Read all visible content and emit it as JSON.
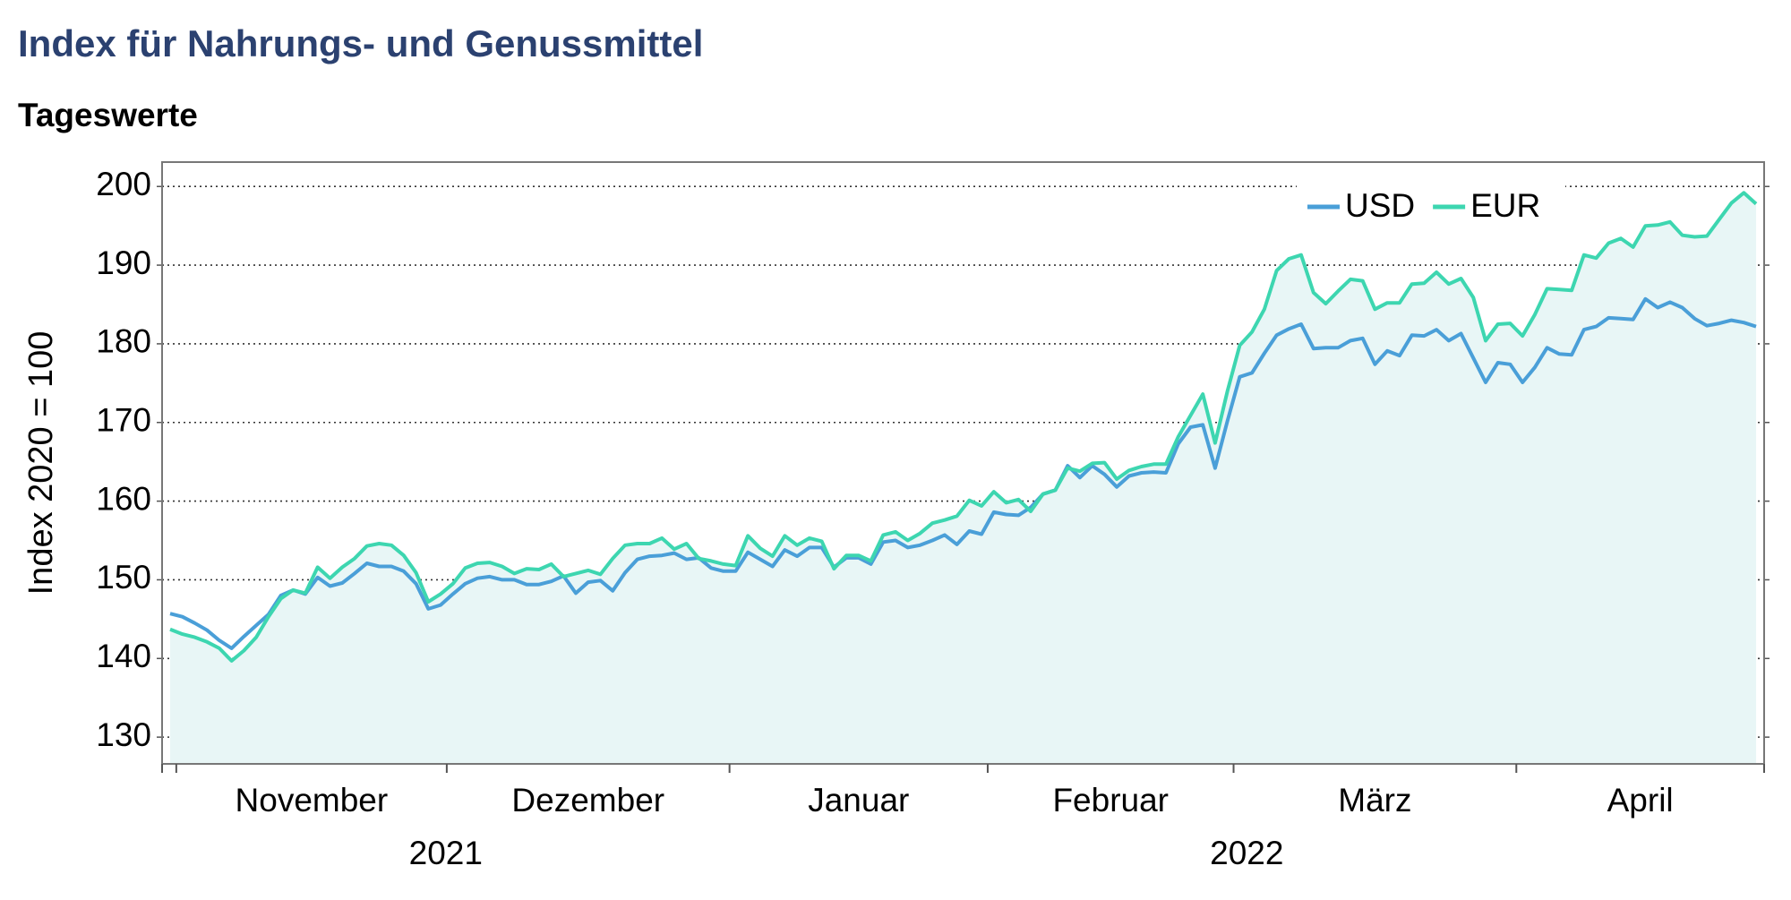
{
  "chart_data": {
    "type": "line",
    "title": "Index für Nahrungs- und Genussmittel",
    "subtitle": "Tageswerte",
    "y_label": "Index 2020 = 100",
    "x": [
      "2021-10",
      "2021-11",
      "2021-11",
      "2021-11",
      "2021-11",
      "2021-11",
      "2021-11",
      "2021-11",
      "2021-11",
      "2021-11",
      "2021-11",
      "2021-11",
      "2021-11",
      "2021-11",
      "2021-11",
      "2021-11",
      "2021-11",
      "2021-11",
      "2021-11",
      "2021-11",
      "2021-11",
      "2021-11",
      "2021-11",
      "2021-12",
      "2021-12",
      "2021-12",
      "2021-12",
      "2021-12",
      "2021-12",
      "2021-12",
      "2021-12",
      "2021-12",
      "2021-12",
      "2021-12",
      "2021-12",
      "2021-12",
      "2021-12",
      "2021-12",
      "2021-12",
      "2021-12",
      "2021-12",
      "2021-12",
      "2021-12",
      "2021-12",
      "2021-12",
      "2021-12",
      "2022-01",
      "2022-01",
      "2022-01",
      "2022-01",
      "2022-01",
      "2022-01",
      "2022-01",
      "2022-01",
      "2022-01",
      "2022-01",
      "2022-01",
      "2022-01",
      "2022-01",
      "2022-01",
      "2022-01",
      "2022-01",
      "2022-01",
      "2022-01",
      "2022-01",
      "2022-01",
      "2022-01",
      "2022-02",
      "2022-02",
      "2022-02",
      "2022-02",
      "2022-02",
      "2022-02",
      "2022-02",
      "2022-02",
      "2022-02",
      "2022-02",
      "2022-02",
      "2022-02",
      "2022-02",
      "2022-02",
      "2022-02",
      "2022-02",
      "2022-02",
      "2022-02",
      "2022-02",
      "2022-02",
      "2022-03",
      "2022-03",
      "2022-03",
      "2022-03",
      "2022-03",
      "2022-03",
      "2022-03",
      "2022-03",
      "2022-03",
      "2022-03",
      "2022-03",
      "2022-03",
      "2022-03",
      "2022-03",
      "2022-03",
      "2022-03",
      "2022-03",
      "2022-03",
      "2022-03",
      "2022-03",
      "2022-03",
      "2022-03",
      "2022-03",
      "2022-04",
      "2022-04",
      "2022-04",
      "2022-04",
      "2022-04",
      "2022-04",
      "2022-04",
      "2022-04",
      "2022-04",
      "2022-04",
      "2022-04",
      "2022-04",
      "2022-04",
      "2022-04",
      "2022-04",
      "2022-04",
      "2022-04",
      "2022-04",
      "2022-04",
      "2022-04"
    ],
    "xticks": [
      {
        "value": "2021-11",
        "label": "November"
      },
      {
        "value": "2021-12",
        "label": "Dezember"
      },
      {
        "value": "2022-01",
        "label": "Januar"
      },
      {
        "value": "2022-02",
        "label": "Februar"
      },
      {
        "value": "2022-03",
        "label": "März"
      },
      {
        "value": "2022-04",
        "label": "April"
      }
    ],
    "xgroups": [
      "2021",
      "2022"
    ],
    "series": [
      {
        "name": "USD",
        "color": "#4a9fd8",
        "values": [
          145.7,
          145.3,
          144.5,
          143.6,
          142.3,
          141.3,
          142.8,
          144.2,
          145.6,
          148,
          148.7,
          148.2,
          150.3,
          149.2,
          149.6,
          150.8,
          152.1,
          151.7,
          151.7,
          151.1,
          149.5,
          146.3,
          146.8,
          148.2,
          149.5,
          150.2,
          150.4,
          150,
          150,
          149.4,
          149.4,
          149.8,
          150.5,
          148.3,
          149.7,
          149.9,
          148.6,
          150.9,
          152.6,
          153,
          153.1,
          153.4,
          152.6,
          152.8,
          151.5,
          151.1,
          151.1,
          153.5,
          152.6,
          151.7,
          153.8,
          153,
          154.1,
          154.1,
          151.6,
          152.8,
          152.8,
          152,
          154.8,
          155,
          154.1,
          154.4,
          155,
          155.7,
          154.5,
          156.2,
          155.8,
          158.6,
          158.3,
          158.2,
          159.2,
          160.9,
          161.4,
          164.5,
          163,
          164.5,
          163.4,
          161.8,
          163.2,
          163.6,
          163.7,
          163.6,
          167.3,
          169.4,
          169.7,
          164.2,
          170.2,
          175.8,
          176.3,
          178.8,
          181.1,
          181.9,
          182.5,
          179.4,
          179.5,
          179.5,
          180.4,
          180.7,
          177.4,
          179.1,
          178.5,
          181.1,
          181,
          181.8,
          180.4,
          181.3,
          178.2,
          175.1,
          177.6,
          177.4,
          175.1,
          177,
          179.5,
          178.7,
          178.6,
          181.8,
          182.2,
          183.3,
          183.2,
          183.1,
          185.7,
          184.6,
          185.3,
          184.6,
          183.2,
          182.3,
          182.6,
          183,
          182.7,
          182.2
        ]
      },
      {
        "name": "EUR",
        "color": "#3dd6b0",
        "values": [
          143.7,
          143.1,
          142.7,
          142.1,
          141.3,
          139.7,
          141,
          142.7,
          145.3,
          147.6,
          148.7,
          148.3,
          151.6,
          150.2,
          151.6,
          152.7,
          154.3,
          154.6,
          154.4,
          153.1,
          150.9,
          147.2,
          148.2,
          149.5,
          151.5,
          152.1,
          152.2,
          151.7,
          150.8,
          151.4,
          151.3,
          152,
          150.4,
          150.8,
          151.2,
          150.7,
          152.7,
          154.4,
          154.6,
          154.6,
          155.3,
          153.9,
          154.6,
          152.7,
          152.4,
          152,
          151.8,
          155.6,
          154,
          153,
          155.6,
          154.4,
          155.3,
          154.9,
          151.4,
          153.1,
          153.1,
          152.4,
          155.7,
          156.1,
          155,
          155.9,
          157.2,
          157.6,
          158.1,
          160.1,
          159.4,
          161.2,
          159.8,
          160.2,
          158.7,
          160.9,
          161.4,
          164.2,
          163.8,
          164.8,
          164.9,
          162.8,
          163.9,
          164.4,
          164.7,
          164.7,
          168.2,
          170.9,
          173.6,
          167.4,
          174,
          179.8,
          181.5,
          184.4,
          189.3,
          190.8,
          191.3,
          186.5,
          185.1,
          186.7,
          188.2,
          188,
          184.4,
          185.2,
          185.2,
          187.6,
          187.7,
          189.1,
          187.6,
          188.3,
          185.9,
          180.4,
          182.5,
          182.6,
          181,
          183.7,
          187,
          186.9,
          186.8,
          191.3,
          190.9,
          192.8,
          193.4,
          192.3,
          195,
          195.1,
          195.5,
          193.8,
          193.6,
          193.7,
          195.8,
          197.9,
          199.2,
          197.8
        ]
      }
    ],
    "area_color": "#e8f6f6",
    "ylim": [
      126.6,
      203.1
    ],
    "yticks": [
      130,
      140,
      150,
      160,
      170,
      180,
      190,
      200
    ],
    "grid": true,
    "legend": "upper right"
  }
}
